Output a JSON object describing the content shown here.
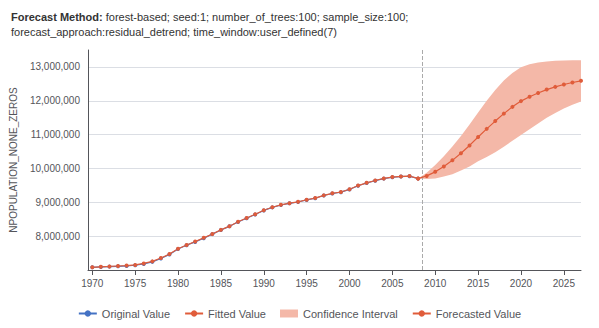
{
  "chart_data": {
    "type": "line",
    "title": "Forecast Method:",
    "subtitle": "forest-based; seed:1; number_of_trees:100; sample_size:100;\nforecast_approach:residual_detrend; time_window:user_defined(7)",
    "ylabel": "NPOPULATION_NONE_ZEROS",
    "xlim": [
      1969.5,
      2027
    ],
    "xticks": [
      1970,
      1975,
      1980,
      1985,
      1990,
      1995,
      2000,
      2005,
      2010,
      2015,
      2020,
      2025
    ],
    "ylim": [
      7000000,
      13500000
    ],
    "yticks": [
      {
        "value": 8000000,
        "label": "8,000,000"
      },
      {
        "value": 9000000,
        "label": "9,000,000"
      },
      {
        "value": 10000000,
        "label": "10,000,000"
      },
      {
        "value": 11000000,
        "label": "11,000,000"
      },
      {
        "value": 12000000,
        "label": "12,000,000"
      },
      {
        "value": 13000000,
        "label": "13,000,000"
      }
    ],
    "grid": true,
    "legend": "bottom",
    "forecast_start": 2008.5,
    "forecast_start_color": "#aaaaaa",
    "series": [
      {
        "name": "Original Value",
        "type": "line",
        "marker": "circle",
        "color": "#4472c4",
        "x": [
          1970,
          1971,
          1972,
          1973,
          1974,
          1975,
          1976,
          1977,
          1978,
          1979,
          1980,
          1981,
          1982,
          1983,
          1984,
          1985,
          1986,
          1987,
          1988,
          1989,
          1990,
          1991,
          1992,
          1993,
          1994,
          1995,
          1996,
          1997,
          1998,
          1999,
          2000,
          2001,
          2002,
          2003,
          2004,
          2005,
          2006,
          2007,
          2008
        ],
        "values": [
          7080000,
          7090000,
          7100000,
          7110000,
          7120000,
          7140000,
          7180000,
          7240000,
          7340000,
          7460000,
          7620000,
          7730000,
          7830000,
          7940000,
          8060000,
          8180000,
          8290000,
          8420000,
          8530000,
          8640000,
          8760000,
          8850000,
          8920000,
          8970000,
          9010000,
          9070000,
          9120000,
          9200000,
          9260000,
          9300000,
          9380000,
          9490000,
          9570000,
          9640000,
          9700000,
          9740000,
          9760000,
          9770000,
          9700000
        ]
      },
      {
        "name": "Fitted Value",
        "type": "line",
        "marker": "circle",
        "color": "#e05c3a",
        "x": [
          1970,
          1971,
          1972,
          1973,
          1974,
          1975,
          1976,
          1977,
          1978,
          1979,
          1980,
          1981,
          1982,
          1983,
          1984,
          1985,
          1986,
          1987,
          1988,
          1989,
          1990,
          1991,
          1992,
          1993,
          1994,
          1995,
          1996,
          1997,
          1998,
          1999,
          2000,
          2001,
          2002,
          2003,
          2004,
          2005,
          2006,
          2007,
          2008
        ],
        "values": [
          7080000,
          7095000,
          7105000,
          7118000,
          7130000,
          7150000,
          7195000,
          7255000,
          7355000,
          7470000,
          7630000,
          7740000,
          7840000,
          7950000,
          8065000,
          8185000,
          8295000,
          8425000,
          8535000,
          8645000,
          8765000,
          8855000,
          8925000,
          8975000,
          9015000,
          9075000,
          9125000,
          9205000,
          9265000,
          9305000,
          9385000,
          9495000,
          9575000,
          9645000,
          9705000,
          9745000,
          9765000,
          9775000,
          9705000
        ]
      },
      {
        "name": "Confidence Interval",
        "type": "band",
        "color": "#f4b8a8",
        "x": [
          2008,
          2009,
          2010,
          2011,
          2012,
          2013,
          2014,
          2015,
          2016,
          2017,
          2018,
          2019,
          2020,
          2021,
          2022,
          2023,
          2024,
          2025,
          2026,
          2027
        ],
        "lower": [
          9700000,
          9690000,
          9700000,
          9760000,
          9830000,
          9940000,
          10060000,
          10210000,
          10340000,
          10480000,
          10640000,
          10820000,
          10990000,
          11160000,
          11330000,
          11500000,
          11640000,
          11770000,
          11880000,
          11980000
        ],
        "upper": [
          9700000,
          9870000,
          10100000,
          10360000,
          10650000,
          10960000,
          11300000,
          11650000,
          12000000,
          12320000,
          12600000,
          12820000,
          12990000,
          13080000,
          13130000,
          13160000,
          13180000,
          13190000,
          13200000,
          13200000
        ]
      },
      {
        "name": "Forecasted Value",
        "type": "line",
        "marker": "circle",
        "color": "#e05c3a",
        "x": [
          2008,
          2009,
          2010,
          2011,
          2012,
          2013,
          2014,
          2015,
          2016,
          2017,
          2018,
          2019,
          2020,
          2021,
          2022,
          2023,
          2024,
          2025,
          2026,
          2027
        ],
        "values": [
          9700000,
          9780000,
          9900000,
          10060000,
          10240000,
          10450000,
          10680000,
          10930000,
          11170000,
          11400000,
          11620000,
          11820000,
          11990000,
          12120000,
          12230000,
          12330000,
          12410000,
          12480000,
          12540000,
          12590000
        ]
      }
    ]
  }
}
